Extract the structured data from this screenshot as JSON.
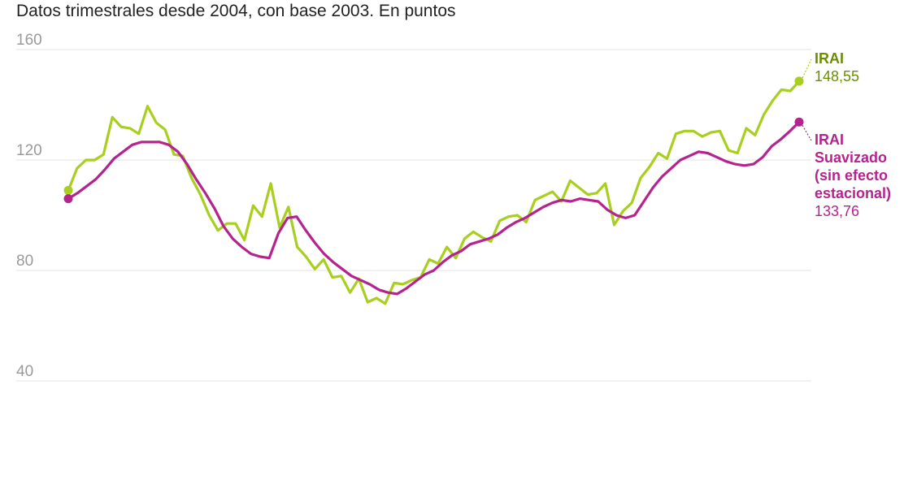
{
  "subtitle": "Datos trimestrales desde 2004, con base 2003. En puntos",
  "chart_data": {
    "type": "line",
    "ylim": [
      40,
      160
    ],
    "yticks": [
      "40",
      "80",
      "120",
      "160"
    ],
    "grid": true,
    "quarters_start": "2004",
    "series": [
      {
        "name_lines": [
          "IRAI"
        ],
        "last_value_label": "148,55",
        "color": "#a8cf1e",
        "label_color": "#6b8e00",
        "values": [
          109,
          117,
          120,
          120,
          122,
          135.5,
          132,
          131.5,
          129.5,
          139.5,
          133.5,
          131,
          122,
          121.5,
          113.5,
          107.5,
          100,
          94.5,
          97,
          97,
          91,
          103.5,
          99.5,
          111.5,
          95.5,
          103,
          88.5,
          85,
          80.5,
          84,
          77.5,
          78,
          72,
          77,
          68.5,
          70,
          68,
          75.5,
          75,
          76.5,
          77.5,
          84,
          82.5,
          88.5,
          84.5,
          91.5,
          94,
          92,
          90.5,
          98,
          99.5,
          100,
          97.5,
          105.5,
          107,
          108.5,
          105,
          112.5,
          110,
          107.5,
          108,
          111.5,
          96.5,
          101.5,
          104.5,
          113.5,
          117.5,
          122.5,
          120.5,
          129.5,
          130.5,
          130.5,
          128.5,
          130,
          130.5,
          123.5,
          122.5,
          131.5,
          129,
          136.5,
          141.5,
          145.5,
          145,
          148.55
        ]
      },
      {
        "name_lines": [
          "IRAI",
          "Suavizado",
          "(sin efecto",
          "estacional)"
        ],
        "last_value_label": "133,76",
        "color": "#b5238e",
        "label_color": "#b5238e",
        "values": [
          106,
          108,
          110.5,
          113,
          116.5,
          120.5,
          123,
          125.5,
          126.5,
          126.5,
          126.5,
          125.5,
          123,
          118.5,
          113,
          108,
          102.5,
          96,
          91.5,
          88.5,
          86,
          85,
          84.5,
          93.5,
          99,
          99.5,
          94.5,
          90,
          86,
          83,
          80.5,
          78,
          76.5,
          75,
          73,
          72,
          71.5,
          73.5,
          76,
          78.5,
          80,
          83,
          85.5,
          87,
          89.5,
          90.5,
          91.5,
          93,
          95.5,
          97.5,
          99,
          101,
          103,
          104.5,
          105.5,
          105,
          106,
          105.5,
          105,
          102,
          100,
          99,
          100,
          105,
          110,
          114,
          117,
          120,
          121.5,
          123,
          122.5,
          121,
          119.5,
          118.5,
          118,
          118.5,
          121,
          125,
          127.5,
          130.5,
          133.76
        ]
      }
    ]
  }
}
